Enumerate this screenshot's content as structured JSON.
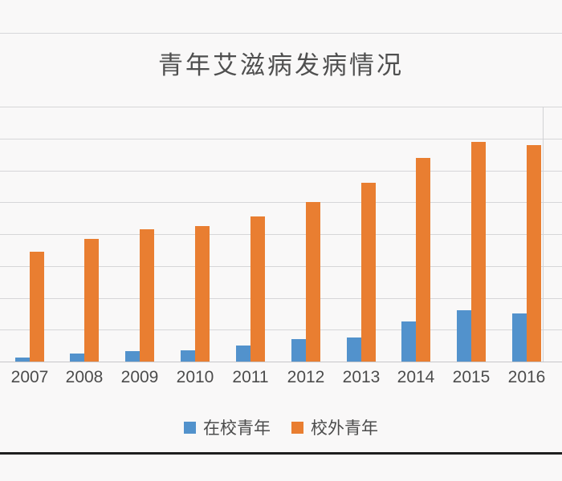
{
  "page": {
    "background": "#f9f8f8",
    "top_rule_color": "#d7d7da",
    "bottom_rule_color": "#1f1f1f"
  },
  "chart_data": {
    "type": "bar",
    "title": "青年艾滋病发病情况",
    "categories": [
      "2007",
      "2008",
      "2009",
      "2010",
      "2011",
      "2012",
      "2013",
      "2014",
      "2015",
      "2016"
    ],
    "series": [
      {
        "name": "在校青年",
        "color": "#5292cc",
        "values": [
          0.12,
          0.25,
          0.33,
          0.35,
          0.5,
          0.7,
          0.75,
          1.25,
          1.6,
          1.5
        ]
      },
      {
        "name": "校外青年",
        "color": "#e97e31",
        "values": [
          3.45,
          3.85,
          4.15,
          4.25,
          4.55,
          5.0,
          5.6,
          6.4,
          6.9,
          6.8
        ]
      }
    ],
    "xlabel": "",
    "ylabel": "",
    "ylim": [
      0,
      8
    ],
    "grid": true,
    "gridline_count": 9,
    "legend_position": "bottom",
    "units_note": "y-axis tick labels cropped out of screenshot; values estimated in gridline intervals"
  }
}
